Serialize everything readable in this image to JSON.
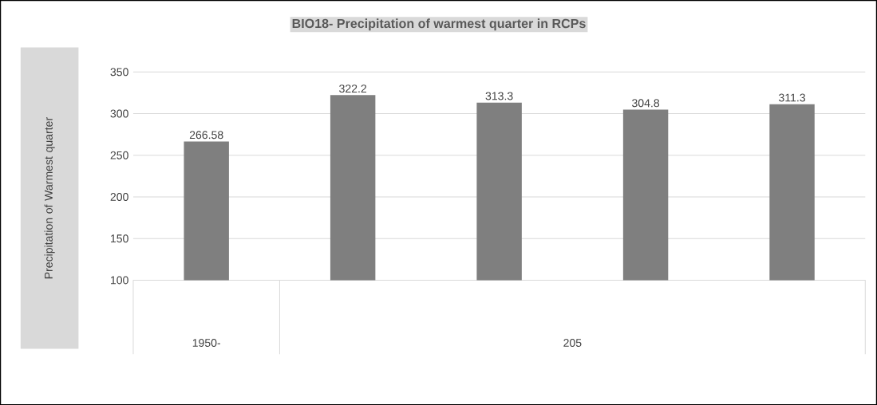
{
  "chart_data": {
    "type": "bar",
    "title": "BIO18- Precipitation of warmest quarter in RCPs",
    "ylabel": "Precipitation of Warmest quarter",
    "categories": [
      null,
      null,
      null,
      null,
      null
    ],
    "values": [
      266.58,
      322.2,
      313.3,
      304.8,
      311.3
    ],
    "value_labels": [
      "266.58",
      "322.2",
      "313.3",
      "304.8",
      "311.3"
    ],
    "color": "#7f7f7f",
    "ylim": [
      100,
      350
    ],
    "yticks": [
      100,
      150,
      200,
      250,
      300,
      350
    ],
    "grid": "y",
    "annotations": [
      "1950-",
      "205"
    ]
  }
}
